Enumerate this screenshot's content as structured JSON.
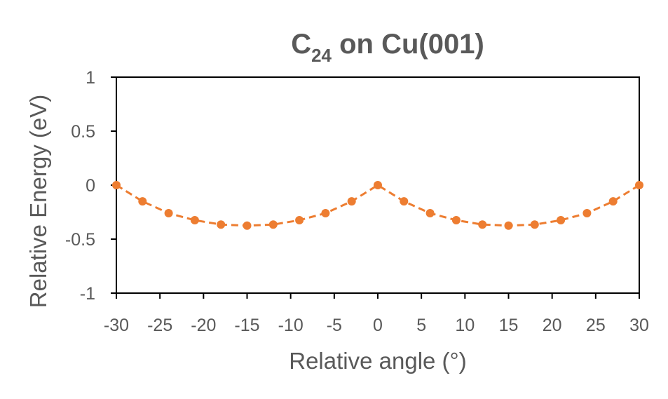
{
  "chart_data": {
    "type": "line",
    "title_main": "C",
    "title_subscript": "24",
    "title_rest": " on Cu(001)",
    "xlabel": "Relative angle (°)",
    "ylabel": "Relative Energy (eV)",
    "xlim": [
      -30,
      30
    ],
    "ylim": [
      -1,
      1
    ],
    "xticks": [
      "-30",
      "-25",
      "-20",
      "-15",
      "-10",
      "-5",
      "0",
      "5",
      "10",
      "15",
      "20",
      "25",
      "30"
    ],
    "yticks": [
      "1",
      "0.5",
      "0",
      "-0.5",
      "-1"
    ],
    "grid": false,
    "line_style": "dashed",
    "color": "#ED7D31",
    "series": [
      {
        "x": [
          -30,
          -27,
          -24,
          -21,
          -18,
          -15,
          -12,
          -9,
          -6,
          -3,
          0,
          3,
          6,
          9,
          12,
          15,
          18,
          21,
          24,
          27,
          30
        ],
        "y": [
          0,
          -0.15,
          -0.26,
          -0.325,
          -0.365,
          -0.375,
          -0.365,
          -0.325,
          -0.26,
          -0.15,
          0,
          -0.15,
          -0.26,
          -0.325,
          -0.365,
          -0.375,
          -0.365,
          -0.325,
          -0.26,
          -0.15,
          0
        ]
      }
    ]
  }
}
